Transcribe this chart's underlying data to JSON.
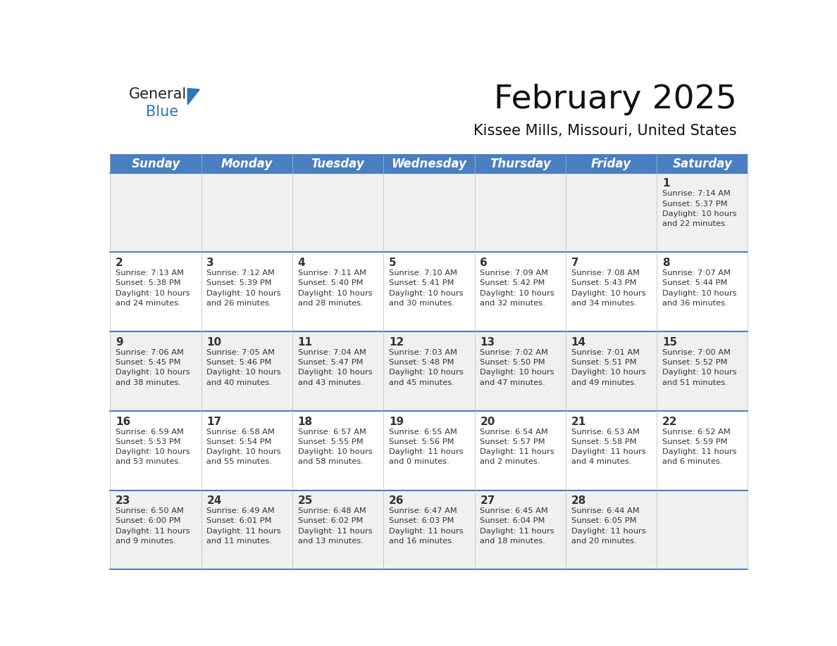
{
  "title": "February 2025",
  "subtitle": "Kissee Mills, Missouri, United States",
  "header_bg": "#4a7fc1",
  "header_text_color": "#FFFFFF",
  "days_of_week": [
    "Sunday",
    "Monday",
    "Tuesday",
    "Wednesday",
    "Thursday",
    "Friday",
    "Saturday"
  ],
  "cell_bg_light": "#f0f0f0",
  "cell_bg_white": "#FFFFFF",
  "divider_color": "#4a7fc1",
  "text_color": "#333333",
  "logo_general_color": "#222222",
  "logo_blue_color": "#2E75B6",
  "calendar": [
    [
      null,
      null,
      null,
      null,
      null,
      null,
      {
        "day": 1,
        "sunrise": "7:14 AM",
        "sunset": "5:37 PM",
        "daylight": "10 hours\nand 22 minutes."
      }
    ],
    [
      {
        "day": 2,
        "sunrise": "7:13 AM",
        "sunset": "5:38 PM",
        "daylight": "10 hours\nand 24 minutes."
      },
      {
        "day": 3,
        "sunrise": "7:12 AM",
        "sunset": "5:39 PM",
        "daylight": "10 hours\nand 26 minutes."
      },
      {
        "day": 4,
        "sunrise": "7:11 AM",
        "sunset": "5:40 PM",
        "daylight": "10 hours\nand 28 minutes."
      },
      {
        "day": 5,
        "sunrise": "7:10 AM",
        "sunset": "5:41 PM",
        "daylight": "10 hours\nand 30 minutes."
      },
      {
        "day": 6,
        "sunrise": "7:09 AM",
        "sunset": "5:42 PM",
        "daylight": "10 hours\nand 32 minutes."
      },
      {
        "day": 7,
        "sunrise": "7:08 AM",
        "sunset": "5:43 PM",
        "daylight": "10 hours\nand 34 minutes."
      },
      {
        "day": 8,
        "sunrise": "7:07 AM",
        "sunset": "5:44 PM",
        "daylight": "10 hours\nand 36 minutes."
      }
    ],
    [
      {
        "day": 9,
        "sunrise": "7:06 AM",
        "sunset": "5:45 PM",
        "daylight": "10 hours\nand 38 minutes."
      },
      {
        "day": 10,
        "sunrise": "7:05 AM",
        "sunset": "5:46 PM",
        "daylight": "10 hours\nand 40 minutes."
      },
      {
        "day": 11,
        "sunrise": "7:04 AM",
        "sunset": "5:47 PM",
        "daylight": "10 hours\nand 43 minutes."
      },
      {
        "day": 12,
        "sunrise": "7:03 AM",
        "sunset": "5:48 PM",
        "daylight": "10 hours\nand 45 minutes."
      },
      {
        "day": 13,
        "sunrise": "7:02 AM",
        "sunset": "5:50 PM",
        "daylight": "10 hours\nand 47 minutes."
      },
      {
        "day": 14,
        "sunrise": "7:01 AM",
        "sunset": "5:51 PM",
        "daylight": "10 hours\nand 49 minutes."
      },
      {
        "day": 15,
        "sunrise": "7:00 AM",
        "sunset": "5:52 PM",
        "daylight": "10 hours\nand 51 minutes."
      }
    ],
    [
      {
        "day": 16,
        "sunrise": "6:59 AM",
        "sunset": "5:53 PM",
        "daylight": "10 hours\nand 53 minutes."
      },
      {
        "day": 17,
        "sunrise": "6:58 AM",
        "sunset": "5:54 PM",
        "daylight": "10 hours\nand 55 minutes."
      },
      {
        "day": 18,
        "sunrise": "6:57 AM",
        "sunset": "5:55 PM",
        "daylight": "10 hours\nand 58 minutes."
      },
      {
        "day": 19,
        "sunrise": "6:55 AM",
        "sunset": "5:56 PM",
        "daylight": "11 hours\nand 0 minutes."
      },
      {
        "day": 20,
        "sunrise": "6:54 AM",
        "sunset": "5:57 PM",
        "daylight": "11 hours\nand 2 minutes."
      },
      {
        "day": 21,
        "sunrise": "6:53 AM",
        "sunset": "5:58 PM",
        "daylight": "11 hours\nand 4 minutes."
      },
      {
        "day": 22,
        "sunrise": "6:52 AM",
        "sunset": "5:59 PM",
        "daylight": "11 hours\nand 6 minutes."
      }
    ],
    [
      {
        "day": 23,
        "sunrise": "6:50 AM",
        "sunset": "6:00 PM",
        "daylight": "11 hours\nand 9 minutes."
      },
      {
        "day": 24,
        "sunrise": "6:49 AM",
        "sunset": "6:01 PM",
        "daylight": "11 hours\nand 11 minutes."
      },
      {
        "day": 25,
        "sunrise": "6:48 AM",
        "sunset": "6:02 PM",
        "daylight": "11 hours\nand 13 minutes."
      },
      {
        "day": 26,
        "sunrise": "6:47 AM",
        "sunset": "6:03 PM",
        "daylight": "11 hours\nand 16 minutes."
      },
      {
        "day": 27,
        "sunrise": "6:45 AM",
        "sunset": "6:04 PM",
        "daylight": "11 hours\nand 18 minutes."
      },
      {
        "day": 28,
        "sunrise": "6:44 AM",
        "sunset": "6:05 PM",
        "daylight": "11 hours\nand 20 minutes."
      },
      null
    ]
  ]
}
